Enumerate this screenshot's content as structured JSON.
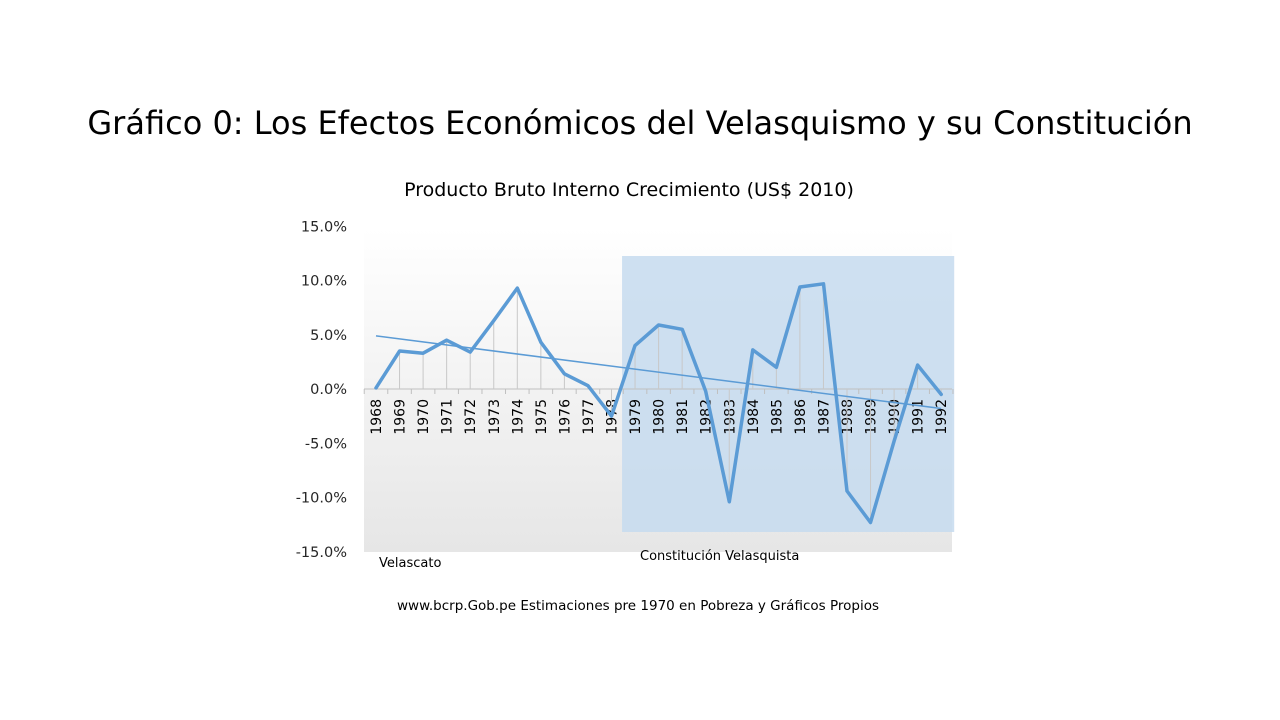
{
  "slide": {
    "title": "Gráfico 0: Los Efectos Económicos del Velasquismo y su Constitución",
    "source_note": "www.bcrp.Gob.pe  Estimaciones pre 1970 en Pobreza y Gráficos Propios"
  },
  "chart_data": {
    "type": "line",
    "title": "Producto  Bruto  Interno  Crecimiento  (US$ 2010)",
    "x": [
      "1968",
      "1969",
      "1970",
      "1971",
      "1972",
      "1973",
      "1974",
      "1975",
      "1976",
      "1977",
      "1978",
      "1979",
      "1980",
      "1981",
      "1982",
      "1983",
      "1984",
      "1985",
      "1986",
      "1987",
      "1988",
      "1989",
      "1990",
      "1991",
      "1992"
    ],
    "series": [
      {
        "values": [
          0.1,
          3.5,
          3.3,
          4.5,
          3.4,
          6.3,
          9.3,
          4.3,
          1.4,
          0.3,
          -2.5,
          4.0,
          5.9,
          5.5,
          -0.2,
          -10.4,
          3.6,
          2.0,
          9.4,
          9.7,
          -9.4,
          -12.3,
          -4.8,
          2.2,
          -0.5
        ],
        "color": "#5b9bd5",
        "unit": "%"
      }
    ],
    "trendline": {
      "start": 4.9,
      "end": -1.8,
      "color": "#5b9bd5"
    },
    "ylim": [
      -15,
      15
    ],
    "yticks": [
      15,
      10,
      5,
      0,
      -5,
      -10,
      -15
    ],
    "ytick_labels": [
      "15.0%",
      "10.0%",
      "5.0%",
      "0.0%",
      "-5.0%",
      "-10.0%",
      "-15.0%"
    ],
    "drop_lines": true,
    "grid": false,
    "regions": [
      {
        "label": "Velascato",
        "from": "1968",
        "to": "1978",
        "shaded": false
      },
      {
        "label": "Constitución Velasquista",
        "from": "1979",
        "to": "1992",
        "shaded": true,
        "color": "#c5daef"
      }
    ]
  }
}
